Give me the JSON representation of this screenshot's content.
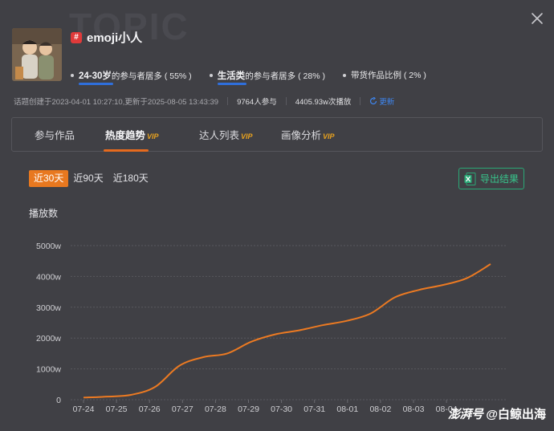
{
  "header": {
    "watermark": "TOPIC",
    "topic_name": "emoji小人",
    "hash_symbol": "#"
  },
  "stats": {
    "age": {
      "highlight": "24-30岁",
      "suffix": "的参与者居多 ( 55% )"
    },
    "category": {
      "highlight": "生活类",
      "suffix": "的参与者居多 ( 28% )"
    },
    "commerce": {
      "text": "带货作品比例 ( 2% )"
    }
  },
  "meta": {
    "created": "话题创建于2023-04-01 10:27:10,更新于2025-08-05 13:43:39",
    "participants": "9764人参与",
    "plays": "4405.93w次播放",
    "refresh_label": "更新"
  },
  "tabs": [
    {
      "label": "参与作品",
      "vip": ""
    },
    {
      "label": "热度趋势",
      "vip": "VIP"
    },
    {
      "label": "达人列表",
      "vip": "VIP"
    },
    {
      "label": "画像分析",
      "vip": "VIP"
    }
  ],
  "range": {
    "options": [
      "近30天",
      "近90天",
      "近180天"
    ],
    "selected": "近30天"
  },
  "export_label": "导出结果",
  "footer": {
    "brand": "澎湃号",
    "author": "@白鲸出海"
  },
  "colors": {
    "accent": "#e8781f",
    "line": "#ec7a22",
    "grid": "#58585e",
    "export": "#2aa876",
    "link": "#3e86f0"
  },
  "chart_data": {
    "type": "line",
    "ylabel": "播放数",
    "y_ticks": [
      "0",
      "1000w",
      "2000w",
      "3000w",
      "4000w",
      "5000w"
    ],
    "ylim": [
      0,
      5000
    ],
    "x_ticks": [
      "07-24",
      "07-25",
      "07-26",
      "07-27",
      "07-28",
      "07-29",
      "07-30",
      "07-31",
      "08-01",
      "08-02",
      "08-03",
      "08-04"
    ],
    "grid": true,
    "series": [
      {
        "values": [
          70,
          100,
          160,
          420,
          1100,
          1380,
          1500,
          1880,
          2120,
          2250,
          2420,
          2560,
          2800,
          3320,
          3560,
          3720,
          3940,
          4400
        ]
      }
    ]
  }
}
